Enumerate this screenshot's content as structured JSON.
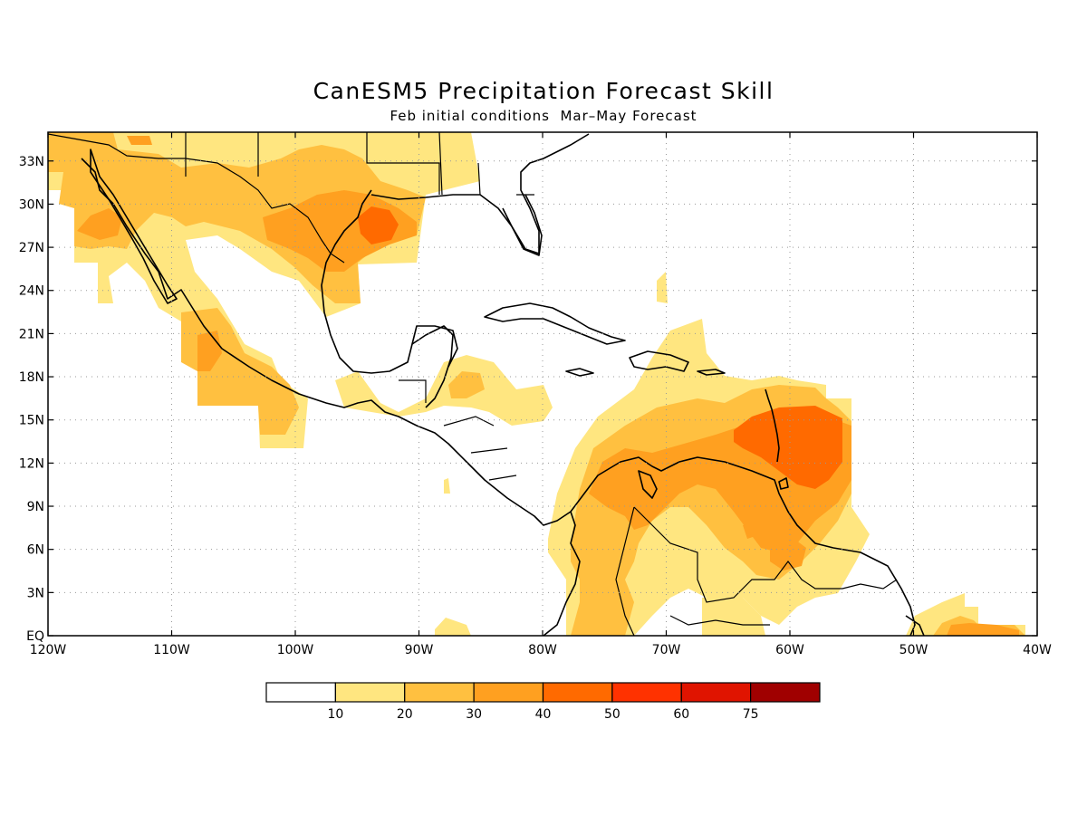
{
  "header": {
    "title": "CanESM5 Precipitation Forecast Skill",
    "subtitle": "Feb initial conditions  Mar–May Forecast"
  },
  "map": {
    "lon_range": [
      -120,
      -40
    ],
    "lat_range": [
      0,
      35
    ],
    "lat_ticks": [
      {
        "value": 33,
        "label": "33N"
      },
      {
        "value": 30,
        "label": "30N"
      },
      {
        "value": 27,
        "label": "27N"
      },
      {
        "value": 24,
        "label": "24N"
      },
      {
        "value": 21,
        "label": "21N"
      },
      {
        "value": 18,
        "label": "18N"
      },
      {
        "value": 15,
        "label": "15N"
      },
      {
        "value": 12,
        "label": "12N"
      },
      {
        "value": 9,
        "label": "9N"
      },
      {
        "value": 6,
        "label": "6N"
      },
      {
        "value": 3,
        "label": "3N"
      },
      {
        "value": 0,
        "label": "EQ"
      }
    ],
    "lon_ticks": [
      {
        "value": -120,
        "label": "120W"
      },
      {
        "value": -110,
        "label": "110W"
      },
      {
        "value": -100,
        "label": "100W"
      },
      {
        "value": -90,
        "label": "90W"
      },
      {
        "value": -80,
        "label": "80W"
      },
      {
        "value": -70,
        "label": "70W"
      },
      {
        "value": -60,
        "label": "60W"
      },
      {
        "value": -50,
        "label": "50W"
      },
      {
        "value": -40,
        "label": "40W"
      }
    ],
    "grid": true
  },
  "colorbar": {
    "labels": [
      "10",
      "20",
      "30",
      "40",
      "50",
      "60",
      "75"
    ],
    "colors": [
      "#ffffff",
      "#ffe680",
      "#ffc040",
      "#ffa020",
      "#ff6a00",
      "#ff3200",
      "#e01400",
      "#a00000"
    ]
  },
  "legend": {
    "color_scale": [
      {
        "bin": 0,
        "color": "#ffffff"
      },
      {
        "bin": 1,
        "color": "#ffe680"
      },
      {
        "bin": 2,
        "color": "#ffc040"
      },
      {
        "bin": 3,
        "color": "#ffa020"
      },
      {
        "bin": 4,
        "color": "#ff6a00"
      }
    ]
  }
}
